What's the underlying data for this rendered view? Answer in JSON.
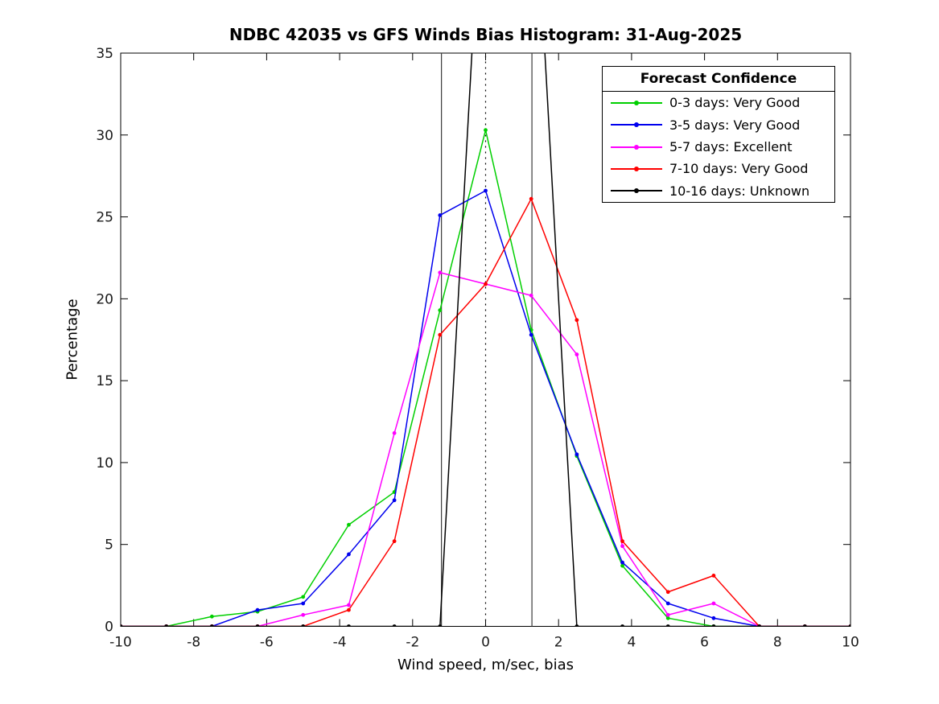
{
  "figure": {
    "background": "#ffffff",
    "axis_color": "#000000",
    "tick_label_color": "#1a1a1a"
  },
  "chart_data": {
    "type": "line",
    "title": "NDBC 42035 vs GFS Winds Bias Histogram: 31-Aug-2025",
    "xlabel": "Wind speed, m/sec, bias",
    "ylabel": "Percentage",
    "xlim": [
      -10,
      10
    ],
    "ylim": [
      0,
      35
    ],
    "x_ticks": [
      -10,
      -8,
      -6,
      -4,
      -2,
      0,
      2,
      4,
      6,
      8,
      10
    ],
    "y_ticks": [
      0,
      5,
      10,
      15,
      20,
      25,
      30,
      35
    ],
    "grid": false,
    "legend_title": "Forecast Confidence",
    "legend_position": "top-right",
    "bin_centers": [
      -10,
      -8.75,
      -7.5,
      -6.25,
      -5,
      -3.75,
      -2.5,
      -1.25,
      0,
      1.25,
      2.5,
      3.75,
      5,
      6.25,
      7.5,
      8.75,
      10
    ],
    "series": [
      {
        "name": "0-3 days: Very Good",
        "color": "#00CF00",
        "values": [
          0,
          0,
          0.6,
          0.9,
          1.8,
          6.2,
          8.2,
          19.3,
          30.3,
          18.1,
          10.4,
          3.7,
          0.5,
          0,
          0,
          0,
          0
        ]
      },
      {
        "name": "3-5 days: Very Good",
        "color": "#0000EE",
        "values": [
          0,
          0,
          0,
          1.0,
          1.4,
          4.4,
          7.7,
          25.1,
          26.6,
          17.8,
          10.5,
          3.9,
          1.4,
          0.5,
          0,
          0,
          0
        ]
      },
      {
        "name": "5-7 days: Excellent",
        "color": "#FF00FF",
        "values": [
          0,
          0,
          0,
          0,
          0.7,
          1.3,
          11.8,
          21.6,
          20.9,
          20.2,
          16.6,
          4.9,
          0.7,
          1.4,
          0,
          0,
          0
        ]
      },
      {
        "name": "7-10 days: Very Good",
        "color": "#FF0000",
        "values": [
          0,
          0,
          0,
          0,
          0,
          1.0,
          5.2,
          17.8,
          20.9,
          26.1,
          18.7,
          5.2,
          2.1,
          3.1,
          0,
          0,
          0
        ]
      },
      {
        "name": "10-16 days: Unknown",
        "color": "#000000",
        "values": [
          0,
          0,
          0,
          0,
          0,
          0,
          0,
          0,
          50,
          50,
          0,
          0,
          0,
          0,
          0,
          0,
          0
        ]
      }
    ],
    "reference_lines": [
      {
        "x": 0,
        "style": "dotted",
        "color": "#000000",
        "name": "zero-bias-reference-line"
      },
      {
        "x": -1.21,
        "style": "solid",
        "color": "#3a3a3a",
        "name": "left-vertical-reference-line"
      },
      {
        "x": 1.27,
        "style": "solid",
        "color": "#3a3a3a",
        "name": "right-vertical-reference-line"
      }
    ]
  }
}
